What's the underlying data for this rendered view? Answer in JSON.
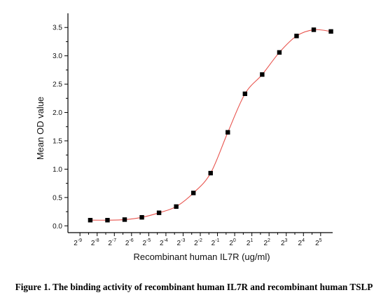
{
  "caption": "Figure 1. The binding activity of recombinant human IL7R and recombinant human TSLP",
  "chart_data": {
    "type": "scatter",
    "xlabel": "Recombinant human  IL7R (ug/ml)",
    "ylabel": "Mean OD value",
    "x_scale": "log2",
    "xlim_exponent": [
      -9.7,
      5.7
    ],
    "ylim": [
      -0.12,
      3.75
    ],
    "x_tick_labels": [
      {
        "base": "2",
        "exp": "-9"
      },
      {
        "base": "2",
        "exp": "-8"
      },
      {
        "base": "2",
        "exp": "-7"
      },
      {
        "base": "2",
        "exp": "-6"
      },
      {
        "base": "2",
        "exp": "-5"
      },
      {
        "base": "2",
        "exp": "-4"
      },
      {
        "base": "2",
        "exp": "-3"
      },
      {
        "base": "2",
        "exp": "-2"
      },
      {
        "base": "2",
        "exp": "-1"
      },
      {
        "base": "2",
        "exp": "0"
      },
      {
        "base": "2",
        "exp": "1"
      },
      {
        "base": "2",
        "exp": "2"
      },
      {
        "base": "2",
        "exp": "3"
      },
      {
        "base": "2",
        "exp": "4"
      },
      {
        "base": "2",
        "exp": "5"
      }
    ],
    "x_tick_exponents": [
      -9,
      -8,
      -7,
      -6,
      -5,
      -4,
      -3,
      -2,
      -1,
      0,
      1,
      2,
      3,
      4,
      5
    ],
    "y_ticks": [
      0.0,
      0.5,
      1.0,
      1.5,
      2.0,
      2.5,
      3.0,
      3.5
    ],
    "y_tick_labels": [
      "0.0",
      "0.5",
      "1.0",
      "1.5",
      "2.0",
      "2.5",
      "3.0",
      "3.5"
    ],
    "marker": "square",
    "marker_color": "#000000",
    "fit_color": "#e8544e",
    "series": [
      {
        "x_exponent": [
          -8.4,
          -7.4,
          -6.4,
          -5.4,
          -4.4,
          -3.4,
          -2.4,
          -1.4,
          -0.4,
          0.6,
          1.6,
          2.6,
          3.6,
          4.6,
          5.6
        ],
        "y": [
          0.1,
          0.1,
          0.11,
          0.15,
          0.23,
          0.34,
          0.58,
          0.93,
          1.65,
          2.33,
          2.67,
          3.06,
          3.35,
          3.46,
          3.43
        ]
      }
    ]
  }
}
